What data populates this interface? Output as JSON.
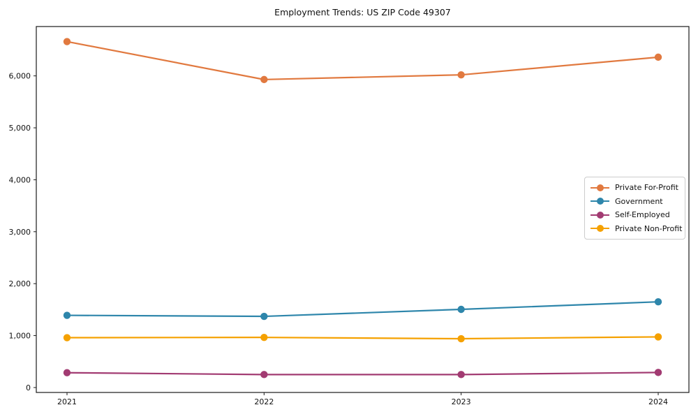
{
  "chart_data": {
    "type": "line",
    "title": "Employment Trends: US ZIP Code 49307",
    "categories": [
      "2021",
      "2022",
      "2023",
      "2024"
    ],
    "series": [
      {
        "name": "Private For-Profit",
        "color": "#E1793F",
        "values": [
          6660,
          5930,
          6020,
          6360
        ]
      },
      {
        "name": "Government",
        "color": "#2E86AB",
        "values": [
          1390,
          1370,
          1505,
          1650
        ]
      },
      {
        "name": "Self-Employed",
        "color": "#A23B72",
        "values": [
          285,
          250,
          250,
          290
        ]
      },
      {
        "name": "Private Non-Profit",
        "color": "#F5A100",
        "values": [
          960,
          965,
          940,
          975
        ]
      }
    ],
    "xlabel": "",
    "ylabel": "",
    "ylim": [
      -95,
      6950
    ],
    "yticks": [
      0,
      1000,
      2000,
      3000,
      4000,
      5000,
      6000
    ],
    "ytick_labels": [
      "0",
      "1,000",
      "2,000",
      "3,000",
      "4,000",
      "5,000",
      "6,000"
    ],
    "grid": false,
    "legend_position": "center-right",
    "marker": "circle",
    "spine_color": "#1a1a1a"
  }
}
